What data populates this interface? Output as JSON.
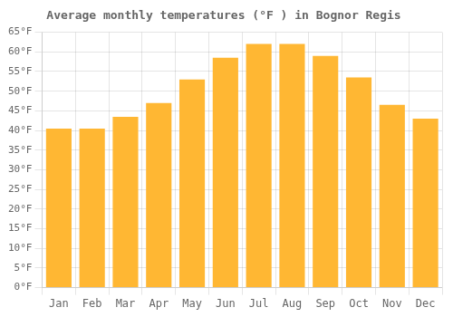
{
  "chart_data": {
    "type": "bar",
    "title": "Average monthly temperatures (°F ) in Bognor Regis",
    "categories": [
      "Jan",
      "Feb",
      "Mar",
      "Apr",
      "May",
      "Jun",
      "Jul",
      "Aug",
      "Sep",
      "Oct",
      "Nov",
      "Dec"
    ],
    "values": [
      40.5,
      40.5,
      43.5,
      47,
      53,
      58.5,
      62,
      62,
      59,
      53.5,
      46.5,
      43
    ],
    "color": "#FFB733",
    "ylim": [
      0,
      65
    ],
    "yticks": [
      {
        "value": 0,
        "label": "0°F"
      },
      {
        "value": 5,
        "label": "5°F"
      },
      {
        "value": 10,
        "label": "10°F"
      },
      {
        "value": 15,
        "label": "15°F"
      },
      {
        "value": 20,
        "label": "20°F"
      },
      {
        "value": 25,
        "label": "25°F"
      },
      {
        "value": 30,
        "label": "30°F"
      },
      {
        "value": 35,
        "label": "35°F"
      },
      {
        "value": 40,
        "label": "40°F"
      },
      {
        "value": 45,
        "label": "45°F"
      },
      {
        "value": 50,
        "label": "50°F"
      },
      {
        "value": 55,
        "label": "55°F"
      },
      {
        "value": 60,
        "label": "60°F"
      },
      {
        "value": 65,
        "label": "65°F"
      }
    ],
    "grid": true
  }
}
